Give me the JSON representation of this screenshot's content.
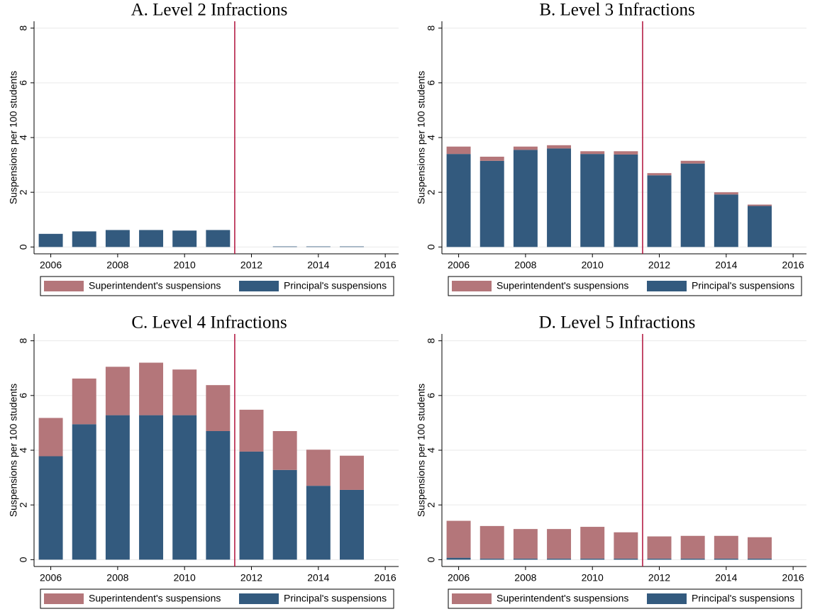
{
  "chart_data": [
    {
      "type": "stacked_bar",
      "title": "A. Level 2 Infractions",
      "ylabel": "Suspensions per 100 students",
      "x": [
        2006,
        2007,
        2008,
        2009,
        2010,
        2011,
        2012,
        2013,
        2014,
        2015
      ],
      "series": [
        {
          "name": "Principal's suspensions",
          "color": "#335a7e",
          "values": [
            0.48,
            0.57,
            0.62,
            0.62,
            0.6,
            0.62,
            null,
            0.02,
            0.02,
            0.02
          ]
        },
        {
          "name": "Superintendent's suspensions",
          "color": "#b4767a",
          "values": [
            0,
            0,
            0,
            0,
            0,
            0,
            null,
            0,
            0,
            0
          ]
        }
      ],
      "xlim": [
        2005.5,
        2016.4
      ],
      "xticks": [
        2006,
        2008,
        2010,
        2012,
        2014,
        2016
      ],
      "ylim": [
        -0.25,
        8.25
      ],
      "yticks": [
        0,
        2,
        4,
        6,
        8
      ],
      "grid": true,
      "reference_line": 2011.5,
      "reference_color": "#b0103a"
    },
    {
      "type": "stacked_bar",
      "title": "B. Level 3 Infractions",
      "ylabel": "Suspensions per 100 students",
      "x": [
        2006,
        2007,
        2008,
        2009,
        2010,
        2011,
        2012,
        2013,
        2014,
        2015
      ],
      "series": [
        {
          "name": "Principal's suspensions",
          "color": "#335a7e",
          "values": [
            3.4,
            3.15,
            3.55,
            3.6,
            3.4,
            3.38,
            2.62,
            3.05,
            1.92,
            1.5
          ]
        },
        {
          "name": "Superintendent's suspensions",
          "color": "#b4767a",
          "values": [
            0.27,
            0.15,
            0.12,
            0.12,
            0.1,
            0.12,
            0.08,
            0.1,
            0.08,
            0.05
          ]
        }
      ],
      "xlim": [
        2005.5,
        2016.4
      ],
      "xticks": [
        2006,
        2008,
        2010,
        2012,
        2014,
        2016
      ],
      "ylim": [
        -0.25,
        8.25
      ],
      "yticks": [
        0,
        2,
        4,
        6,
        8
      ],
      "grid": true,
      "reference_line": 2011.5,
      "reference_color": "#b0103a"
    },
    {
      "type": "stacked_bar",
      "title": "C. Level 4 Infractions",
      "ylabel": "Suspensions per 100 students",
      "x": [
        2006,
        2007,
        2008,
        2009,
        2010,
        2011,
        2012,
        2013,
        2014,
        2015
      ],
      "series": [
        {
          "name": "Principal's suspensions",
          "color": "#335a7e",
          "values": [
            3.78,
            4.95,
            5.28,
            5.28,
            5.28,
            4.7,
            3.95,
            3.28,
            2.7,
            2.55
          ]
        },
        {
          "name": "Superintendent's suspensions",
          "color": "#b4767a",
          "values": [
            1.4,
            1.67,
            1.77,
            1.92,
            1.67,
            1.68,
            1.53,
            1.42,
            1.32,
            1.25
          ]
        }
      ],
      "xlim": [
        2005.5,
        2016.4
      ],
      "xticks": [
        2006,
        2008,
        2010,
        2012,
        2014,
        2016
      ],
      "ylim": [
        -0.25,
        8.25
      ],
      "yticks": [
        0,
        2,
        4,
        6,
        8
      ],
      "grid": true,
      "reference_line": 2011.5,
      "reference_color": "#b0103a"
    },
    {
      "type": "stacked_bar",
      "title": "D. Level 5 Infractions",
      "ylabel": "Suspensions per 100 students",
      "x": [
        2006,
        2007,
        2008,
        2009,
        2010,
        2011,
        2012,
        2013,
        2014,
        2015
      ],
      "series": [
        {
          "name": "Principal's suspensions",
          "color": "#335a7e",
          "values": [
            0.07,
            0.04,
            0.04,
            0.04,
            0.04,
            0.04,
            0.04,
            0.04,
            0.04,
            0.04
          ]
        },
        {
          "name": "Superintendent's suspensions",
          "color": "#b4767a",
          "values": [
            1.35,
            1.19,
            1.08,
            1.08,
            1.16,
            0.96,
            0.81,
            0.83,
            0.83,
            0.78
          ]
        }
      ],
      "xlim": [
        2005.5,
        2016.4
      ],
      "xticks": [
        2006,
        2008,
        2010,
        2012,
        2014,
        2016
      ],
      "ylim": [
        -0.25,
        8.25
      ],
      "yticks": [
        0,
        2,
        4,
        6,
        8
      ],
      "grid": true,
      "reference_line": 2011.5,
      "reference_color": "#b0103a"
    }
  ]
}
